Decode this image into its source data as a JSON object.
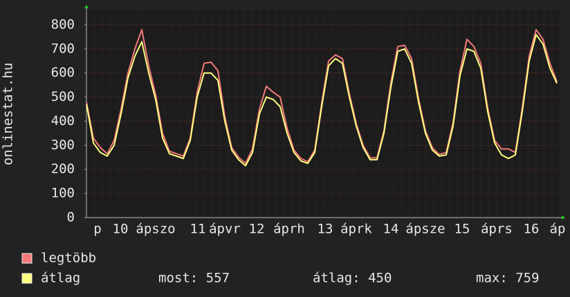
{
  "chart_data": {
    "type": "line",
    "y_label": "onlinestat.hu",
    "ylim": [
      0,
      860
    ],
    "yticks": [
      0,
      100,
      200,
      300,
      400,
      500,
      600,
      700,
      800
    ],
    "grid": true,
    "x_labels": [
      "p",
      "10",
      "ápszo",
      "11",
      "ápvr",
      "12",
      "áprh",
      "13",
      "áprk",
      "14",
      "ápsze",
      "15",
      "áprs",
      "16",
      "áp"
    ],
    "series": [
      {
        "name": "legtöbb",
        "color": "#f47a7a",
        "values": [
          480,
          330,
          290,
          265,
          320,
          450,
          600,
          700,
          780,
          630,
          510,
          350,
          275,
          265,
          255,
          330,
          520,
          640,
          645,
          610,
          420,
          290,
          250,
          225,
          285,
          450,
          545,
          520,
          500,
          370,
          280,
          245,
          232,
          280,
          475,
          650,
          675,
          660,
          515,
          390,
          300,
          248,
          248,
          360,
          560,
          710,
          715,
          660,
          495,
          360,
          290,
          262,
          270,
          395,
          610,
          740,
          710,
          640,
          455,
          320,
          285,
          285,
          270,
          455,
          670,
          780,
          740,
          640,
          565
        ]
      },
      {
        "name": "átlag",
        "color": "#ffff80",
        "values": [
          470,
          310,
          270,
          255,
          300,
          430,
          580,
          670,
          730,
          600,
          490,
          330,
          265,
          255,
          245,
          320,
          500,
          600,
          600,
          570,
          400,
          280,
          240,
          215,
          270,
          430,
          500,
          490,
          460,
          350,
          270,
          235,
          225,
          270,
          460,
          630,
          660,
          640,
          500,
          380,
          290,
          240,
          240,
          350,
          540,
          690,
          700,
          640,
          480,
          350,
          280,
          255,
          260,
          380,
          590,
          700,
          690,
          620,
          440,
          310,
          260,
          245,
          260,
          440,
          650,
          759,
          720,
          620,
          557
        ]
      }
    ],
    "stats": [
      "most: 557",
      "átlag: 450",
      "max: 759"
    ]
  }
}
